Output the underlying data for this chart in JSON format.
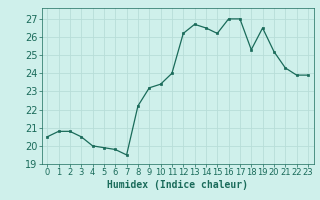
{
  "x": [
    0,
    1,
    2,
    3,
    4,
    5,
    6,
    7,
    8,
    9,
    10,
    11,
    12,
    13,
    14,
    15,
    16,
    17,
    18,
    19,
    20,
    21,
    22,
    23
  ],
  "y": [
    20.5,
    20.8,
    20.8,
    20.5,
    20.0,
    19.9,
    19.8,
    19.5,
    22.2,
    23.2,
    23.4,
    24.0,
    26.2,
    26.7,
    26.5,
    26.2,
    27.0,
    27.0,
    25.3,
    26.5,
    25.2,
    24.3,
    23.9,
    23.9
  ],
  "line_color": "#1a6b5a",
  "marker": "s",
  "markersize": 1.8,
  "linewidth": 0.9,
  "bg_color": "#cff0eb",
  "grid_color": "#b8ddd8",
  "xlabel": "Humidex (Indice chaleur)",
  "xlabel_fontsize": 7,
  "ylabel_fontsize": 7,
  "tick_fontsize": 6,
  "ylim": [
    19,
    27.6
  ],
  "yticks": [
    19,
    20,
    21,
    22,
    23,
    24,
    25,
    26,
    27
  ],
  "xlim": [
    -0.5,
    23.5
  ],
  "xticks": [
    0,
    1,
    2,
    3,
    4,
    5,
    6,
    7,
    8,
    9,
    10,
    11,
    12,
    13,
    14,
    15,
    16,
    17,
    18,
    19,
    20,
    21,
    22,
    23
  ]
}
